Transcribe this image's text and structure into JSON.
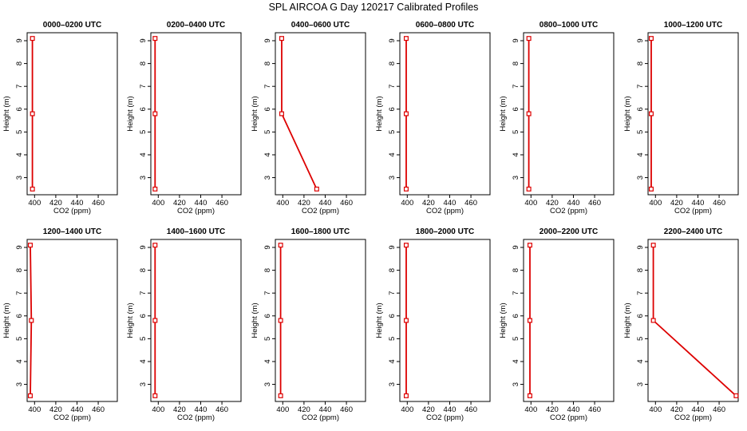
{
  "title": "SPL AIRCOA G  Day 120217  Calibrated Profiles",
  "colors": {
    "series": "#dd0000",
    "axis": "#000000"
  },
  "chart_data": [
    {
      "type": "line",
      "title": "0000–0200 UTC",
      "xlabel": "CO2 (ppm)",
      "ylabel": "Height (m)",
      "xlim": [
        393,
        478
      ],
      "ylim": [
        2.25,
        9.35
      ],
      "xticks": [
        400,
        420,
        440,
        460
      ],
      "yticks": [
        3,
        4,
        5,
        6,
        7,
        8,
        9
      ],
      "x": [
        398,
        398,
        398
      ],
      "y": [
        9.1,
        5.8,
        2.5
      ]
    },
    {
      "type": "line",
      "title": "0200–0400 UTC",
      "xlabel": "CO2 (ppm)",
      "ylabel": "Height (m)",
      "xlim": [
        393,
        478
      ],
      "ylim": [
        2.25,
        9.35
      ],
      "xticks": [
        400,
        420,
        440,
        460
      ],
      "yticks": [
        3,
        4,
        5,
        6,
        7,
        8,
        9
      ],
      "x": [
        397,
        397,
        397
      ],
      "y": [
        9.1,
        5.8,
        2.5
      ]
    },
    {
      "type": "line",
      "title": "0400–0600 UTC",
      "xlabel": "CO2 (ppm)",
      "ylabel": "Height (m)",
      "xlim": [
        393,
        478
      ],
      "ylim": [
        2.25,
        9.35
      ],
      "xticks": [
        400,
        420,
        440,
        460
      ],
      "yticks": [
        3,
        4,
        5,
        6,
        7,
        8,
        9
      ],
      "x": [
        399,
        399,
        432
      ],
      "y": [
        9.1,
        5.8,
        2.5
      ]
    },
    {
      "type": "line",
      "title": "0600–0800 UTC",
      "xlabel": "CO2 (ppm)",
      "ylabel": "Height (m)",
      "xlim": [
        393,
        478
      ],
      "ylim": [
        2.25,
        9.35
      ],
      "xticks": [
        400,
        420,
        440,
        460
      ],
      "yticks": [
        3,
        4,
        5,
        6,
        7,
        8,
        9
      ],
      "x": [
        399,
        399,
        399
      ],
      "y": [
        9.1,
        5.8,
        2.5
      ]
    },
    {
      "type": "line",
      "title": "0800–1000 UTC",
      "xlabel": "CO2 (ppm)",
      "ylabel": "Height (m)",
      "xlim": [
        393,
        478
      ],
      "ylim": [
        2.25,
        9.35
      ],
      "xticks": [
        400,
        420,
        440,
        460
      ],
      "yticks": [
        3,
        4,
        5,
        6,
        7,
        8,
        9
      ],
      "x": [
        398,
        398,
        398
      ],
      "y": [
        9.1,
        5.8,
        2.5
      ]
    },
    {
      "type": "line",
      "title": "1000–1200 UTC",
      "xlabel": "CO2 (ppm)",
      "ylabel": "Height (m)",
      "xlim": [
        393,
        478
      ],
      "ylim": [
        2.25,
        9.35
      ],
      "xticks": [
        400,
        420,
        440,
        460
      ],
      "yticks": [
        3,
        4,
        5,
        6,
        7,
        8,
        9
      ],
      "x": [
        396,
        396,
        396
      ],
      "y": [
        9.1,
        5.8,
        2.5
      ]
    },
    {
      "type": "line",
      "title": "1200–1400 UTC",
      "xlabel": "CO2 (ppm)",
      "ylabel": "Height (m)",
      "xlim": [
        393,
        478
      ],
      "ylim": [
        2.25,
        9.35
      ],
      "xticks": [
        400,
        420,
        440,
        460
      ],
      "yticks": [
        3,
        4,
        5,
        6,
        7,
        8,
        9
      ],
      "x": [
        396,
        397,
        396
      ],
      "y": [
        9.1,
        5.8,
        2.5
      ]
    },
    {
      "type": "line",
      "title": "1400–1600 UTC",
      "xlabel": "CO2 (ppm)",
      "ylabel": "Height (m)",
      "xlim": [
        393,
        478
      ],
      "ylim": [
        2.25,
        9.35
      ],
      "xticks": [
        400,
        420,
        440,
        460
      ],
      "yticks": [
        3,
        4,
        5,
        6,
        7,
        8,
        9
      ],
      "x": [
        397,
        397,
        397
      ],
      "y": [
        9.1,
        5.8,
        2.5
      ]
    },
    {
      "type": "line",
      "title": "1600–1800 UTC",
      "xlabel": "CO2 (ppm)",
      "ylabel": "Height (m)",
      "xlim": [
        393,
        478
      ],
      "ylim": [
        2.25,
        9.35
      ],
      "xticks": [
        400,
        420,
        440,
        460
      ],
      "yticks": [
        3,
        4,
        5,
        6,
        7,
        8,
        9
      ],
      "x": [
        398,
        398,
        398
      ],
      "y": [
        9.1,
        5.8,
        2.5
      ]
    },
    {
      "type": "line",
      "title": "1800–2000 UTC",
      "xlabel": "CO2 (ppm)",
      "ylabel": "Height (m)",
      "xlim": [
        393,
        478
      ],
      "ylim": [
        2.25,
        9.35
      ],
      "xticks": [
        400,
        420,
        440,
        460
      ],
      "yticks": [
        3,
        4,
        5,
        6,
        7,
        8,
        9
      ],
      "x": [
        399,
        399,
        399
      ],
      "y": [
        9.1,
        5.8,
        2.5
      ]
    },
    {
      "type": "line",
      "title": "2000–2200 UTC",
      "xlabel": "CO2 (ppm)",
      "ylabel": "Height (m)",
      "xlim": [
        393,
        478
      ],
      "ylim": [
        2.25,
        9.35
      ],
      "xticks": [
        400,
        420,
        440,
        460
      ],
      "yticks": [
        3,
        4,
        5,
        6,
        7,
        8,
        9
      ],
      "x": [
        399,
        399,
        399
      ],
      "y": [
        9.1,
        5.8,
        2.5
      ]
    },
    {
      "type": "line",
      "title": "2200–2400 UTC",
      "xlabel": "CO2 (ppm)",
      "ylabel": "Height (m)",
      "xlim": [
        393,
        478
      ],
      "ylim": [
        2.25,
        9.35
      ],
      "xticks": [
        400,
        420,
        440,
        460
      ],
      "yticks": [
        3,
        4,
        5,
        6,
        7,
        8,
        9
      ],
      "x": [
        398,
        398,
        476
      ],
      "y": [
        9.1,
        5.8,
        2.5
      ]
    }
  ]
}
